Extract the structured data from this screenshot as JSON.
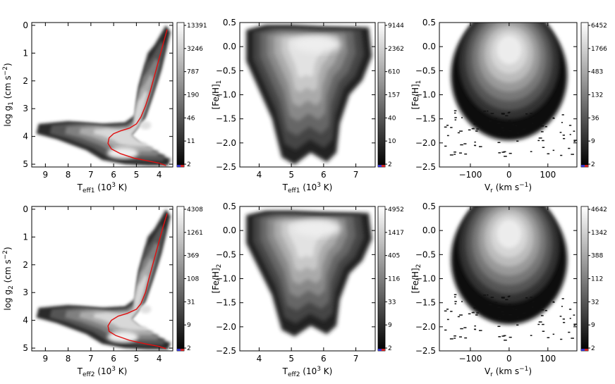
{
  "figure": {
    "colorbar_gradient": [
      "#000000",
      "#ffffff"
    ],
    "curve_color": "#e01010",
    "colorbar_bottom_accent": [
      "#3333cc",
      "#cc2222"
    ]
  },
  "chart_data": [
    {
      "id": "p1",
      "type": "heatmap",
      "xlabel": "T_eff1 (10^3 K)",
      "xlabel_parts": [
        "T",
        "eff1",
        " (10",
        "3",
        " K)"
      ],
      "ylabel_parts": [
        "log g",
        "1",
        " (cm s",
        "−2",
        ")"
      ],
      "xlim": [
        9.6,
        3.4
      ],
      "ylim": [
        5.1,
        -0.1
      ],
      "xticks": [
        9,
        8,
        7,
        6,
        5,
        4
      ],
      "yticks": [
        0,
        1,
        2,
        3,
        4,
        5
      ],
      "colorbar_ticks": [
        "13391",
        "3246",
        "787",
        "190",
        "46",
        "11",
        "2"
      ],
      "curve": [
        [
          3.65,
          0.15
        ],
        [
          3.8,
          0.6
        ],
        [
          4.0,
          1.2
        ],
        [
          4.2,
          1.8
        ],
        [
          4.4,
          2.4
        ],
        [
          4.6,
          2.9
        ],
        [
          4.8,
          3.3
        ],
        [
          5.0,
          3.55
        ],
        [
          5.3,
          3.7
        ],
        [
          5.7,
          3.8
        ],
        [
          6.0,
          3.9
        ],
        [
          6.2,
          4.05
        ],
        [
          6.25,
          4.25
        ],
        [
          6.1,
          4.45
        ],
        [
          5.7,
          4.62
        ],
        [
          5.1,
          4.78
        ],
        [
          4.5,
          4.88
        ],
        [
          4.0,
          4.96
        ],
        [
          3.7,
          5.05
        ]
      ]
    },
    {
      "id": "p2",
      "type": "heatmap",
      "xlabel": "T_eff1 (10^3 K)",
      "xlabel_parts": [
        "T",
        "eff1",
        " (10",
        "3",
        " K)"
      ],
      "ylabel_parts": [
        "[Fe/H]",
        "1",
        "",
        "",
        ""
      ],
      "xlim": [
        3.4,
        7.6
      ],
      "ylim": [
        -2.5,
        0.5
      ],
      "xticks": [
        4,
        5,
        6,
        7
      ],
      "yticks": [
        0.5,
        0.0,
        -0.5,
        -1.0,
        -1.5,
        -2.0,
        -2.5
      ],
      "ytick_labels": [
        "0.5",
        "0.0",
        "−0.5",
        "−1.0",
        "−1.5",
        "−2.0",
        "−2.5"
      ],
      "colorbar_ticks": [
        "9144",
        "2362",
        "610",
        "157",
        "40",
        "10",
        "2"
      ]
    },
    {
      "id": "p3",
      "type": "heatmap",
      "xlabel": "V_r (km s^-1)",
      "xlabel_parts": [
        "V",
        "r",
        " (km s",
        "−1",
        ")"
      ],
      "ylabel_parts": [
        "[Fe/H]",
        "1",
        "",
        "",
        ""
      ],
      "xlim": [
        -180,
        175
      ],
      "ylim": [
        -2.5,
        0.5
      ],
      "xticks": [
        -100,
        0,
        100
      ],
      "xtick_labels": [
        "−100",
        "0",
        "100"
      ],
      "yticks": [
        0.5,
        0.0,
        -0.5,
        -1.0,
        -1.5,
        -2.0,
        -2.5
      ],
      "ytick_labels": [
        "0.5",
        "0.0",
        "−0.5",
        "−1.0",
        "−1.5",
        "−2.0",
        "−2.5"
      ],
      "colorbar_ticks": [
        "6452",
        "1766",
        "483",
        "132",
        "36",
        "9",
        "2"
      ]
    },
    {
      "id": "p4",
      "type": "heatmap",
      "xlabel": "T_eff2 (10^3 K)",
      "xlabel_parts": [
        "T",
        "eff2",
        " (10",
        "3",
        " K)"
      ],
      "ylabel_parts": [
        "log g",
        "2",
        " (cm s",
        "−2",
        ")"
      ],
      "xlim": [
        9.6,
        3.4
      ],
      "ylim": [
        5.1,
        -0.1
      ],
      "xticks": [
        9,
        8,
        7,
        6,
        5,
        4
      ],
      "yticks": [
        0,
        1,
        2,
        3,
        4,
        5
      ],
      "colorbar_ticks": [
        "4308",
        "1261",
        "369",
        "108",
        "31",
        "9",
        "2"
      ],
      "curve": [
        [
          3.65,
          0.15
        ],
        [
          3.85,
          0.7
        ],
        [
          4.05,
          1.3
        ],
        [
          4.25,
          1.9
        ],
        [
          4.45,
          2.5
        ],
        [
          4.6,
          3.0
        ],
        [
          4.8,
          3.4
        ],
        [
          5.0,
          3.6
        ],
        [
          5.4,
          3.75
        ],
        [
          5.8,
          3.85
        ],
        [
          6.1,
          4.0
        ],
        [
          6.25,
          4.2
        ],
        [
          6.2,
          4.4
        ],
        [
          5.9,
          4.55
        ],
        [
          5.3,
          4.72
        ],
        [
          4.6,
          4.85
        ],
        [
          4.0,
          4.94
        ],
        [
          3.7,
          5.02
        ]
      ]
    },
    {
      "id": "p5",
      "type": "heatmap",
      "xlabel": "T_eff2 (10^3 K)",
      "xlabel_parts": [
        "T",
        "eff2",
        " (10",
        "3",
        " K)"
      ],
      "ylabel_parts": [
        "[Fe/H]",
        "2",
        "",
        "",
        ""
      ],
      "xlim": [
        3.4,
        7.6
      ],
      "ylim": [
        -2.5,
        0.5
      ],
      "xticks": [
        4,
        5,
        6,
        7
      ],
      "yticks": [
        0.5,
        0.0,
        -0.5,
        -1.0,
        -1.5,
        -2.0,
        -2.5
      ],
      "ytick_labels": [
        "0.5",
        "0.0",
        "−0.5",
        "−1.0",
        "−1.5",
        "−2.0",
        "−2.5"
      ],
      "colorbar_ticks": [
        "4952",
        "1417",
        "405",
        "116",
        "33",
        "9",
        "2"
      ]
    },
    {
      "id": "p6",
      "type": "heatmap",
      "xlabel": "V_r (km s^-1)",
      "xlabel_parts": [
        "V",
        "r",
        " (km s",
        "−1",
        ")"
      ],
      "ylabel_parts": [
        "[Fe/H]",
        "2",
        "",
        "",
        ""
      ],
      "xlim": [
        -180,
        175
      ],
      "ylim": [
        -2.5,
        0.5
      ],
      "xticks": [
        -100,
        0,
        100
      ],
      "xtick_labels": [
        "−100",
        "0",
        "100"
      ],
      "yticks": [
        0.5,
        0.0,
        -0.5,
        -1.0,
        -1.5,
        -2.0,
        -2.5
      ],
      "ytick_labels": [
        "0.5",
        "0.0",
        "−0.5",
        "−1.0",
        "−1.5",
        "−2.0",
        "−2.5"
      ],
      "colorbar_ticks": [
        "4642",
        "1342",
        "388",
        "112",
        "32",
        "9",
        "2"
      ]
    }
  ]
}
